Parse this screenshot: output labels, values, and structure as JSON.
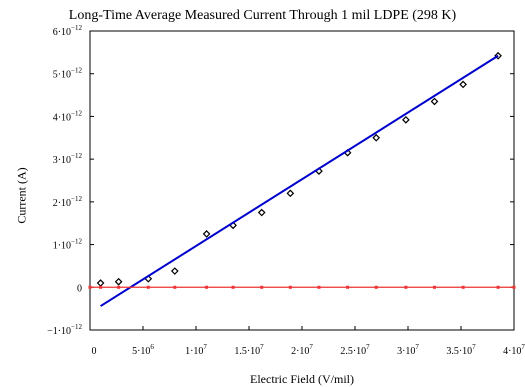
{
  "chart_data": {
    "type": "scatter",
    "title": "Long-Time Average Measured Current Through 1 mil LDPE (298 K)",
    "xlabel": "Electric Field (V/mil)",
    "ylabel": "Current (A)",
    "xlim": [
      0,
      40000000
    ],
    "ylim": [
      -1e-12,
      6e-12
    ],
    "x_ticks": [
      {
        "v": 0,
        "label": "0",
        "exp": ""
      },
      {
        "v": 5000000,
        "label": "5·10",
        "exp": "6"
      },
      {
        "v": 10000000,
        "label": "1·10",
        "exp": "7"
      },
      {
        "v": 15000000,
        "label": "1.5·10",
        "exp": "7"
      },
      {
        "v": 20000000,
        "label": "2·10",
        "exp": "7"
      },
      {
        "v": 25000000,
        "label": "2.5·10",
        "exp": "7"
      },
      {
        "v": 30000000,
        "label": "3·10",
        "exp": "7"
      },
      {
        "v": 35000000,
        "label": "3.5·10",
        "exp": "7"
      },
      {
        "v": 40000000,
        "label": "4·10",
        "exp": "7"
      }
    ],
    "y_ticks": [
      {
        "v": -1e-12,
        "label": "−1·10",
        "exp": "−12"
      },
      {
        "v": 0,
        "label": "0",
        "exp": ""
      },
      {
        "v": 1e-12,
        "label": "1·10",
        "exp": "−12"
      },
      {
        "v": 2e-12,
        "label": "2·10",
        "exp": "−12"
      },
      {
        "v": 3e-12,
        "label": "3·10",
        "exp": "−12"
      },
      {
        "v": 4e-12,
        "label": "4·10",
        "exp": "−12"
      },
      {
        "v": 5e-12,
        "label": "5·10",
        "exp": "−12"
      },
      {
        "v": 6e-12,
        "label": "6·10",
        "exp": "−12"
      }
    ],
    "series": [
      {
        "kind": "points",
        "color": "#000000",
        "x": [
          1000000,
          2700000,
          5500000,
          8000000,
          11000000,
          13500000,
          16200000,
          18900000,
          21600000,
          24300000,
          27000000,
          29800000,
          32500000,
          35200000,
          38500000
        ],
        "y": [
          1e-13,
          1.3e-13,
          2e-13,
          3.8e-13,
          1.25e-12,
          1.45e-12,
          1.75e-12,
          2.2e-12,
          2.72e-12,
          3.15e-12,
          3.5e-12,
          3.92e-12,
          4.35e-12,
          4.75e-12,
          5.42e-12
        ]
      },
      {
        "kind": "fit-line",
        "color": "#0000cc",
        "x": [
          1000000,
          38500000
        ],
        "y": [
          -4.4e-13,
          5.42e-12
        ]
      },
      {
        "kind": "baseline",
        "color": "#ee3333",
        "x": [
          0,
          1000000,
          2700000,
          5500000,
          8000000,
          11000000,
          13500000,
          16200000,
          18900000,
          21600000,
          24300000,
          27000000,
          29800000,
          32500000,
          35200000,
          38500000,
          40000000
        ],
        "y": [
          0,
          0,
          0,
          0,
          0,
          0,
          0,
          0,
          0,
          0,
          0,
          0,
          0,
          0,
          0,
          0,
          0
        ]
      }
    ]
  }
}
